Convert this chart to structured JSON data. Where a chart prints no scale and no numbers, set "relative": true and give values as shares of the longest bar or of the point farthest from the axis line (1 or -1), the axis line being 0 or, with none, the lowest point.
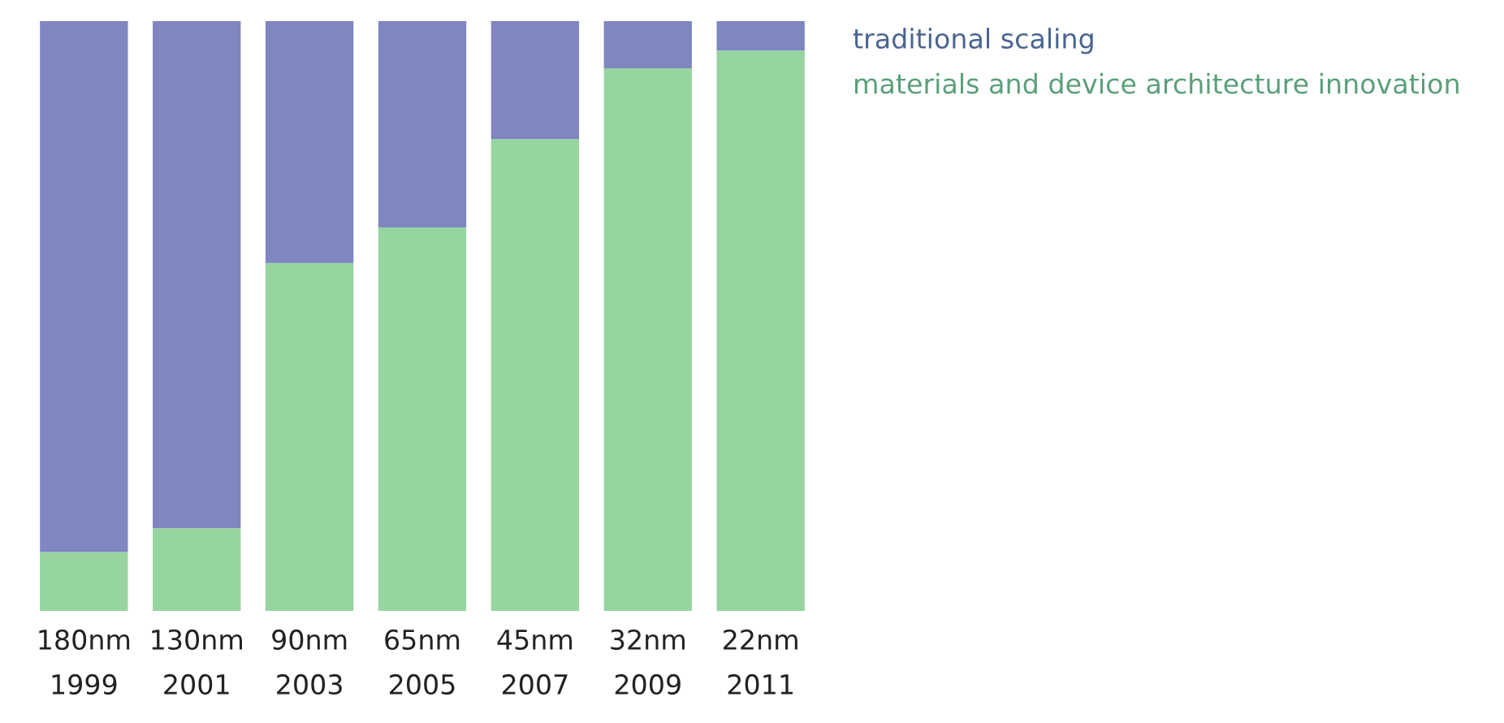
{
  "chart_data": {
    "type": "bar",
    "stacked": true,
    "relative": true,
    "legend": "top right",
    "grid": false,
    "categories": [
      "180nm\n1999",
      "130nm\n2001",
      "90nm\n2003",
      "65nm\n2005",
      "45nm\n2007",
      "32nm\n2009",
      "22nm\n2011"
    ],
    "series": [
      {
        "name": "materials and device architecture innovation",
        "color": "#96d4a0",
        "values": [
          0.1,
          0.14,
          0.59,
          0.65,
          0.8,
          0.92,
          0.95
        ]
      },
      {
        "name": "traditional scaling",
        "color": "#7f86c0",
        "values": [
          0.9,
          0.86,
          0.41,
          0.35,
          0.2,
          0.08,
          0.05
        ]
      }
    ]
  }
}
